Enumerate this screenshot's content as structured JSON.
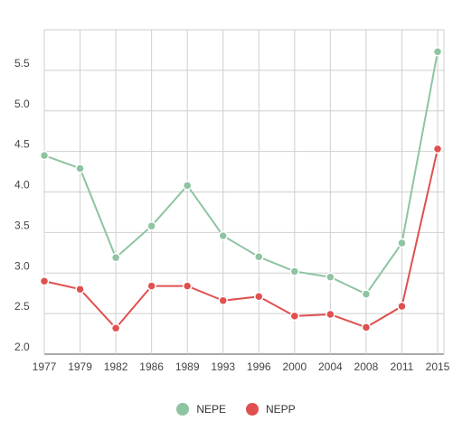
{
  "chart_data": {
    "type": "line",
    "title": "",
    "xlabel": "",
    "ylabel": "",
    "categories": [
      "1977",
      "1979",
      "1982",
      "1986",
      "1989",
      "1993",
      "1996",
      "2000",
      "2004",
      "2008",
      "2011",
      "2015"
    ],
    "y_ticks": [
      "2.0",
      "2.5",
      "3.0",
      "3.5",
      "4.0",
      "4.5",
      "5.0",
      "5.5"
    ],
    "ylim": [
      2.0,
      6.0
    ],
    "grid": true,
    "legend_position": "bottom-center",
    "series": [
      {
        "name": "NEPE",
        "color": "#8ec4a2",
        "values": [
          4.45,
          4.29,
          3.19,
          3.58,
          4.08,
          3.46,
          3.2,
          3.02,
          2.95,
          2.74,
          3.37,
          5.73
        ]
      },
      {
        "name": "NEPP",
        "color": "#e05050",
        "values": [
          2.9,
          2.8,
          2.32,
          2.84,
          2.84,
          2.66,
          2.71,
          2.47,
          2.49,
          2.33,
          2.59,
          4.53
        ]
      }
    ]
  }
}
